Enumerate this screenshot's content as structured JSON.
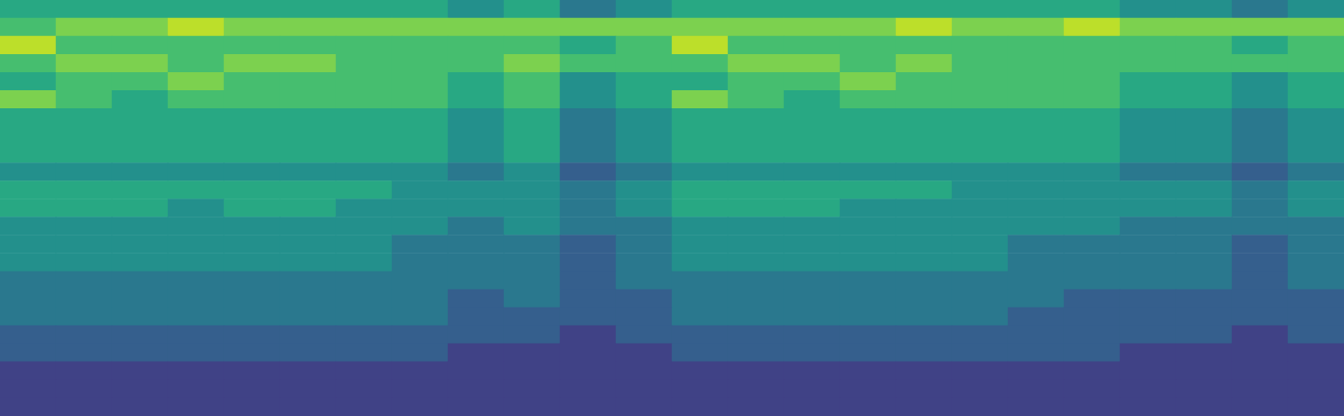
{
  "chart_data": {
    "type": "heatmap",
    "categories": [
      null,
      null,
      null,
      null,
      null,
      null,
      null,
      null,
      null,
      null,
      null,
      null,
      null,
      null,
      null,
      null,
      null,
      null,
      null,
      null,
      null,
      null,
      null,
      null
    ],
    "y_categories": [
      null,
      null,
      null,
      null,
      null,
      null,
      null,
      null,
      null,
      null,
      null,
      null,
      null,
      null,
      null,
      null,
      null,
      null,
      null,
      null,
      null,
      null,
      null
    ],
    "tick_labels": false,
    "grid": false,
    "color_range": [
      0,
      10
    ],
    "cells": [
      [
        6,
        6,
        6,
        6,
        6,
        6,
        6,
        6,
        5,
        6,
        4,
        5,
        6,
        6,
        6,
        6,
        6,
        6,
        6,
        6,
        5,
        5,
        4,
        5
      ],
      [
        7,
        8,
        8,
        9,
        8,
        8,
        8,
        8,
        8,
        8,
        8,
        8,
        8,
        8,
        8,
        8,
        9,
        8,
        8,
        9,
        8,
        8,
        8,
        8
      ],
      [
        9,
        7,
        7,
        7,
        7,
        7,
        7,
        7,
        7,
        7,
        6,
        7,
        9,
        7,
        7,
        7,
        7,
        7,
        7,
        7,
        7,
        7,
        6,
        7
      ],
      [
        7,
        8,
        8,
        7,
        8,
        8,
        7,
        7,
        7,
        8,
        7,
        7,
        7,
        8,
        8,
        7,
        8,
        7,
        7,
        7,
        7,
        7,
        7,
        7
      ],
      [
        6,
        7,
        7,
        8,
        7,
        7,
        7,
        7,
        6,
        7,
        5,
        6,
        6,
        7,
        7,
        8,
        7,
        7,
        7,
        7,
        6,
        6,
        5,
        6
      ],
      [
        8,
        7,
        6,
        7,
        7,
        7,
        7,
        7,
        6,
        7,
        5,
        6,
        8,
        7,
        6,
        7,
        7,
        7,
        7,
        7,
        6,
        6,
        5,
        6
      ],
      [
        6,
        6,
        6,
        6,
        6,
        6,
        6,
        6,
        5,
        6,
        4,
        5,
        6,
        6,
        6,
        6,
        6,
        6,
        6,
        6,
        5,
        5,
        4,
        5
      ],
      [
        6,
        6,
        6,
        6,
        6,
        6,
        6,
        6,
        5,
        6,
        4,
        5,
        6,
        6,
        6,
        6,
        6,
        6,
        6,
        6,
        5,
        5,
        4,
        5
      ],
      [
        6,
        6,
        6,
        6,
        6,
        6,
        6,
        6,
        5,
        6,
        4,
        5,
        6,
        6,
        6,
        6,
        6,
        6,
        6,
        6,
        5,
        5,
        4,
        5
      ],
      [
        5,
        5,
        5,
        5,
        5,
        5,
        5,
        5,
        4,
        5,
        3,
        4,
        5,
        5,
        5,
        5,
        5,
        5,
        5,
        5,
        4,
        4,
        3,
        4
      ],
      [
        6,
        6,
        6,
        6,
        6,
        6,
        6,
        5,
        5,
        5,
        4,
        5,
        6,
        6,
        6,
        6,
        6,
        5,
        5,
        5,
        5,
        5,
        4,
        5
      ],
      [
        6,
        6,
        6,
        5,
        6,
        6,
        5,
        5,
        5,
        5,
        4,
        5,
        6,
        6,
        6,
        5,
        5,
        5,
        5,
        5,
        5,
        5,
        4,
        5
      ],
      [
        5,
        5,
        5,
        5,
        5,
        5,
        5,
        5,
        4,
        5,
        4,
        4,
        5,
        5,
        5,
        5,
        5,
        5,
        5,
        5,
        4,
        4,
        4,
        4
      ],
      [
        5,
        5,
        5,
        5,
        5,
        5,
        5,
        4,
        4,
        4,
        3,
        4,
        5,
        5,
        5,
        5,
        5,
        5,
        4,
        4,
        4,
        4,
        3,
        4
      ],
      [
        5,
        5,
        5,
        5,
        5,
        5,
        5,
        4,
        4,
        4,
        3,
        4,
        5,
        5,
        5,
        5,
        5,
        5,
        4,
        4,
        4,
        4,
        3,
        4
      ],
      [
        4,
        4,
        4,
        4,
        4,
        4,
        4,
        4,
        4,
        4,
        3,
        4,
        4,
        4,
        4,
        4,
        4,
        4,
        4,
        4,
        4,
        4,
        3,
        4
      ],
      [
        4,
        4,
        4,
        4,
        4,
        4,
        4,
        4,
        3,
        4,
        3,
        3,
        4,
        4,
        4,
        4,
        4,
        4,
        4,
        3,
        3,
        3,
        3,
        3
      ],
      [
        4,
        4,
        4,
        4,
        4,
        4,
        4,
        4,
        3,
        3,
        3,
        3,
        4,
        4,
        4,
        4,
        4,
        4,
        3,
        3,
        3,
        3,
        3,
        3
      ],
      [
        3,
        3,
        3,
        3,
        3,
        3,
        3,
        3,
        3,
        3,
        2,
        3,
        3,
        3,
        3,
        3,
        3,
        3,
        3,
        3,
        3,
        3,
        2,
        3
      ],
      [
        3,
        3,
        3,
        3,
        3,
        3,
        3,
        3,
        2,
        2,
        2,
        2,
        3,
        3,
        3,
        3,
        3,
        3,
        3,
        3,
        2,
        2,
        2,
        2
      ],
      [
        2,
        2,
        2,
        2,
        2,
        2,
        2,
        2,
        2,
        2,
        2,
        2,
        2,
        2,
        2,
        2,
        2,
        2,
        2,
        2,
        2,
        2,
        2,
        2
      ],
      [
        2,
        2,
        2,
        2,
        2,
        2,
        2,
        2,
        2,
        2,
        2,
        2,
        2,
        2,
        2,
        2,
        2,
        2,
        2,
        2,
        2,
        2,
        2,
        2
      ],
      [
        2,
        2,
        2,
        2,
        2,
        2,
        2,
        2,
        2,
        2,
        2,
        2,
        2,
        2,
        2,
        2,
        2,
        2,
        2,
        2,
        2,
        2,
        2,
        2
      ]
    ]
  }
}
